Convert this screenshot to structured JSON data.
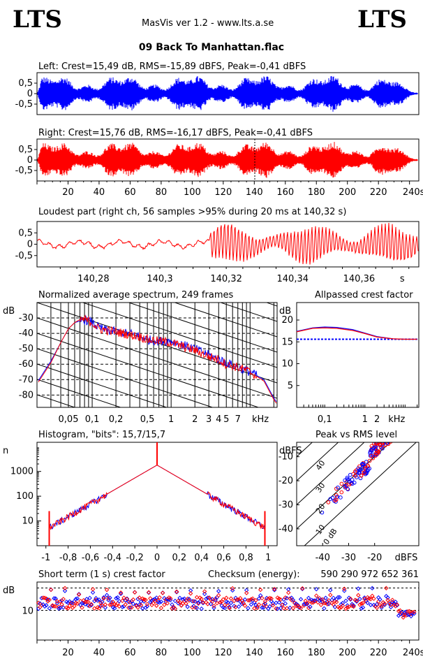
{
  "header": {
    "logo_left": "LTS",
    "logo_right": "LTS",
    "app": "MasVis ver 1.2 - www.lts.a.se",
    "file": "09 Back To Manhattan.flac"
  },
  "colors": {
    "left": "#0000ff",
    "right": "#ff0000",
    "grid": "#000000"
  },
  "chart_data": [
    {
      "type": "line",
      "title": "Left: Crest=15,49 dB, RMS=-15,89 dBFS, Peak=-0,41 dBFS",
      "yticks": [
        "0,5",
        "0",
        "-0,5"
      ],
      "ylim": [
        -1,
        1
      ],
      "xlim": [
        0,
        246
      ],
      "series": [
        {
          "name": "Left"
        }
      ]
    },
    {
      "type": "line",
      "title": "Right: Crest=15,76 dB, RMS=-16,17 dBFS, Peak=-0,41 dBFS",
      "yticks": [
        "0,5",
        "0",
        "-0,5"
      ],
      "xticks": [
        "20",
        "40",
        "60",
        "80",
        "100",
        "120",
        "140",
        "160",
        "180",
        "200",
        "220",
        "240s"
      ],
      "xtick_values": [
        20,
        40,
        60,
        80,
        100,
        120,
        140,
        160,
        180,
        200,
        220,
        240
      ],
      "xlim": [
        0,
        246
      ],
      "marker_x": 140.32
    },
    {
      "type": "line",
      "title": "Loudest part (right ch, 56 samples >95% during 20 ms at 140,32 s)",
      "yticks": [
        "0,5",
        "0",
        "-0,5"
      ],
      "xticks": [
        "140,28",
        "140,3",
        "140,32",
        "140,34",
        "140,36",
        "s"
      ],
      "xtick_values": [
        140.28,
        140.3,
        140.32,
        140.34,
        140.36,
        140.373
      ],
      "xlim": [
        140.263,
        140.378
      ]
    },
    {
      "type": "line",
      "title": "Normalized average spectrum, 249 frames",
      "ylabel": "dB",
      "yticks": [
        "-30",
        "-40",
        "-50",
        "-60",
        "-70",
        "-80"
      ],
      "ytick_values": [
        -30,
        -40,
        -50,
        -60,
        -70,
        -80
      ],
      "ylim": [
        -88,
        -20
      ],
      "xscale": "log",
      "xticks": [
        "0,05",
        "0,1",
        "0,2",
        "0,5",
        "1",
        "2",
        "3",
        "4",
        "5",
        "7",
        "kHz"
      ],
      "xtick_values": [
        0.05,
        0.1,
        0.2,
        0.5,
        1,
        2,
        3,
        4,
        5,
        7,
        13.5
      ],
      "xlim": [
        0.02,
        22
      ],
      "x": [
        0.02,
        0.03,
        0.04,
        0.05,
        0.06,
        0.07,
        0.08,
        0.1,
        0.12,
        0.15,
        0.2,
        0.25,
        0.3,
        0.4,
        0.5,
        0.7,
        1,
        1.5,
        2,
        3,
        4,
        5,
        7,
        10,
        15,
        20,
        22
      ],
      "series": [
        {
          "name": "Left",
          "values": [
            -72,
            -58,
            -46,
            -37,
            -33,
            -32,
            -31,
            -33,
            -36,
            -38,
            -39,
            -40,
            -40,
            -42,
            -44,
            -45,
            -45,
            -48,
            -50,
            -54,
            -57,
            -59,
            -62,
            -65,
            -70,
            -82,
            -85
          ]
        },
        {
          "name": "Right",
          "values": [
            -73,
            -59,
            -46,
            -37,
            -33,
            -31,
            -31,
            -33,
            -37,
            -38,
            -39,
            -40,
            -41,
            -42,
            -44,
            -45,
            -46,
            -49,
            -51,
            -55,
            -57,
            -60,
            -62,
            -65,
            -71,
            -83,
            -86
          ]
        }
      ]
    },
    {
      "type": "line",
      "title": "Allpassed crest factor",
      "ylabel": "dB",
      "yticks": [
        "20",
        "15",
        "10",
        "5"
      ],
      "ytick_values": [
        20,
        15,
        10,
        5
      ],
      "ylim": [
        0,
        24
      ],
      "xscale": "log",
      "xticks": [
        "0,1",
        "1",
        "2",
        "kHz"
      ],
      "xtick_values": [
        0.1,
        1,
        2,
        10
      ],
      "xlim": [
        0.02,
        22
      ],
      "reference": 15.6,
      "x": [
        0.02,
        0.05,
        0.1,
        0.2,
        0.5,
        1,
        2,
        5,
        10,
        20
      ],
      "series": [
        {
          "name": "Left",
          "values": [
            17.4,
            18.2,
            18.4,
            18.3,
            17.8,
            17,
            16.2,
            15.7,
            15.6,
            15.6
          ]
        },
        {
          "name": "Right",
          "values": [
            17.3,
            18.1,
            18.2,
            18.1,
            17.6,
            16.9,
            16.1,
            15.7,
            15.6,
            15.6
          ]
        }
      ]
    },
    {
      "type": "line",
      "title": "Histogram, \"bits\": 15,7/15,7",
      "ylabel": "n",
      "yscale": "log",
      "yticks": [
        "1000",
        "100",
        "10"
      ],
      "ytick_values": [
        1000,
        100,
        10
      ],
      "ylim": [
        1,
        15000
      ],
      "xticks": [
        "-1",
        "-0,8",
        "-0,6",
        "-0,4",
        "-0,2",
        "0",
        "0,2",
        "0,4",
        "0,6",
        "0,8",
        "1"
      ],
      "xtick_values": [
        -1,
        -0.8,
        -0.6,
        -0.4,
        -0.2,
        0,
        0.2,
        0.4,
        0.6,
        0.8,
        1
      ],
      "xlim": [
        -1.08,
        1.08
      ]
    },
    {
      "type": "scatter",
      "title": "Peak vs RMS level",
      "ylabel": "dBFS",
      "xlabel": "dBFS",
      "yticks": [
        "-10",
        "-20",
        "-30",
        "-40"
      ],
      "ytick_values": [
        -10,
        -20,
        -30,
        -40
      ],
      "xticks": [
        "-40",
        "-30",
        "-20"
      ],
      "xtick_values": [
        -40,
        -30,
        -20
      ],
      "xlim": [
        -50,
        -3
      ],
      "ylim": [
        -47,
        -4
      ],
      "diag_labels": [
        "40",
        "30",
        "20",
        "10",
        "0 dB"
      ],
      "diag_values": [
        40,
        30,
        20,
        10,
        0
      ]
    },
    {
      "type": "scatter",
      "title": "Short term (1 s) crest factor",
      "ylabel": "dB",
      "yticks": [
        "10"
      ],
      "ytick_values": [
        10
      ],
      "ylim": [
        4,
        24
      ],
      "xticks": [
        "20",
        "40",
        "60",
        "80",
        "100",
        "120",
        "140",
        "160",
        "180",
        "200",
        "220",
        "240s"
      ],
      "xtick_values": [
        20,
        40,
        60,
        80,
        100,
        120,
        140,
        160,
        180,
        200,
        220,
        240
      ],
      "xlim": [
        0,
        246
      ],
      "refs": [
        10,
        20
      ],
      "checksum_label": "Checksum (energy):",
      "checksum": "590 290 972 652 361"
    }
  ]
}
